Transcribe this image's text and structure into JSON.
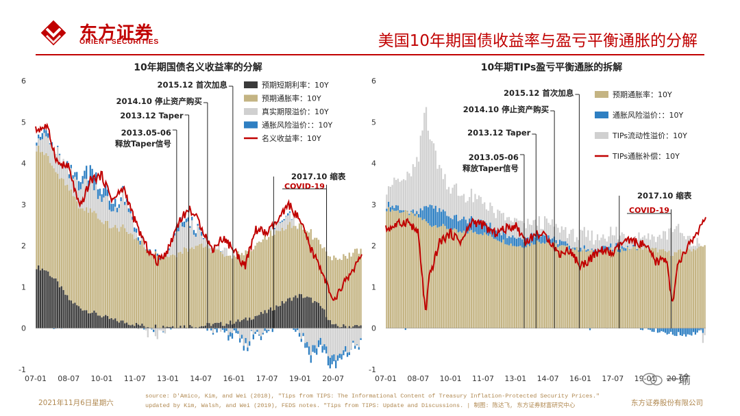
{
  "header": {
    "logo_text": "东方证券",
    "logo_sub": "ORIENT SECURITIES",
    "title": "美国10年期国债收益率与盈亏平衡通胀的分解"
  },
  "footer": {
    "date": "2021年11月6日星期六",
    "source_line1": "source: D'Amico, Kim, and Wei (2018), \"Tips from TIPS: The Informational Content of Treasury Inflation-Protected Security Prices.\"",
    "source_line2": "updated by Kim, Walsh, and Wei (2019), FEDS notes. \"Tips from TIPS: Update and Discussions. | 制图: 陈达飞, 东方证券财富研究中心",
    "company": "东方证券股份有限公司",
    "watermark": "一瑜"
  },
  "colors": {
    "brand_red": "#c00000",
    "tan": "#c4b483",
    "dark": "#3a3a3a",
    "light_gray": "#d0d0d0",
    "blue": "#2e7fc2",
    "line_red": "#c00000",
    "footer": "#b08850"
  },
  "chart_data": [
    {
      "type": "area",
      "title": "10年期国债名义收益率的分解",
      "x_tick_labels": [
        "07-01",
        "08-07",
        "10-01",
        "11-07",
        "13-01",
        "14-07",
        "16-01",
        "17-07",
        "19-01",
        "20-07"
      ],
      "x": [
        2007.0,
        2007.5,
        2008.0,
        2008.5,
        2009.0,
        2009.5,
        2010.0,
        2010.5,
        2011.0,
        2011.5,
        2012.0,
        2012.5,
        2013.0,
        2013.5,
        2014.0,
        2014.5,
        2015.0,
        2015.5,
        2016.0,
        2016.5,
        2017.0,
        2017.5,
        2018.0,
        2018.5,
        2019.0,
        2019.5,
        2020.0,
        2020.5,
        2021.0,
        2021.5,
        2021.8
      ],
      "ylim": [
        -1,
        6
      ],
      "y_ticks": [
        -1,
        0,
        1,
        2,
        3,
        4,
        5,
        6
      ],
      "series": [
        {
          "name": "预期短期利率：10Y",
          "values": [
            1.5,
            1.4,
            1.1,
            0.7,
            0.5,
            0.4,
            0.3,
            0.2,
            0.15,
            0.1,
            0.05,
            0.05,
            0.05,
            0.05,
            0.05,
            0.05,
            0.1,
            0.1,
            0.15,
            0.2,
            0.3,
            0.4,
            0.55,
            0.7,
            0.8,
            0.7,
            0.5,
            0.05,
            0.05,
            0.05,
            0.05
          ]
        },
        {
          "name": "预期通胀率：10Y",
          "values": [
            2.9,
            2.8,
            2.6,
            2.7,
            2.4,
            2.5,
            2.3,
            2.2,
            2.3,
            2.1,
            1.9,
            1.7,
            1.7,
            1.8,
            1.9,
            2.0,
            1.8,
            1.7,
            1.6,
            1.6,
            1.7,
            1.8,
            1.8,
            1.8,
            1.7,
            1.6,
            1.5,
            1.6,
            1.7,
            1.8,
            1.8
          ]
        },
        {
          "name": "真实期限溢价：10Y",
          "values": [
            0.3,
            0.4,
            0.5,
            0.3,
            0.6,
            0.7,
            0.6,
            0.4,
            0.7,
            0.2,
            -0.1,
            -0.2,
            0.0,
            0.6,
            0.6,
            0.2,
            0.0,
            0.1,
            -0.1,
            -0.4,
            0.0,
            -0.1,
            0.2,
            0.4,
            -0.1,
            -0.5,
            -0.3,
            -0.8,
            -0.6,
            -0.4,
            -0.3
          ]
        },
        {
          "name": "通胀风险溢价：：10Y",
          "values": [
            0.1,
            0.1,
            0.0,
            0.1,
            0.2,
            0.3,
            0.2,
            0.2,
            0.1,
            0.1,
            0.0,
            0.0,
            0.0,
            0.1,
            0.1,
            0.05,
            -0.05,
            -0.05,
            -0.1,
            -0.1,
            -0.05,
            -0.05,
            0.0,
            0.0,
            -0.1,
            -0.2,
            -0.2,
            -0.2,
            -0.1,
            -0.05,
            0.0
          ]
        },
        {
          "name": "名义收益率：10Y",
          "values": [
            4.8,
            4.9,
            4.0,
            3.9,
            2.9,
            3.6,
            3.7,
            3.1,
            3.4,
            2.6,
            2.0,
            1.6,
            1.9,
            2.6,
            2.9,
            2.5,
            1.9,
            2.2,
            1.9,
            1.5,
            2.4,
            2.3,
            2.6,
            3.0,
            2.6,
            1.9,
            1.4,
            0.6,
            1.1,
            1.5,
            1.7
          ]
        }
      ],
      "annotations": [
        {
          "text": "2013.05-06",
          "x": 2013.4
        },
        {
          "text": "释放Taper信号",
          "x": 2013.4
        },
        {
          "text": "2013.12 Taper",
          "x": 2013.95
        },
        {
          "text": "2014.10 停止资产购买",
          "x": 2014.8
        },
        {
          "text": "2015.12 首次加息",
          "x": 2015.95
        },
        {
          "text": "2017.10 缩表",
          "x": 2017.8
        },
        {
          "text": "COVID-19",
          "x": 2020.2
        }
      ],
      "legend_position": "top-right"
    },
    {
      "type": "area",
      "title": "10年期TIPs盈亏平衡通胀的拆解",
      "x_tick_labels": [
        "07-01",
        "08-07",
        "10-01",
        "11-07",
        "13-01",
        "14-07",
        "16-01",
        "17-07",
        "19-01",
        "20-07"
      ],
      "x": [
        2007.0,
        2007.5,
        2008.0,
        2008.5,
        2008.85,
        2009.0,
        2009.5,
        2010.0,
        2010.5,
        2011.0,
        2011.5,
        2012.0,
        2012.5,
        2013.0,
        2013.5,
        2014.0,
        2014.5,
        2015.0,
        2015.5,
        2016.0,
        2016.5,
        2017.0,
        2017.5,
        2018.0,
        2018.5,
        2019.0,
        2019.5,
        2020.0,
        2020.25,
        2020.5,
        2021.0,
        2021.5,
        2021.8
      ],
      "ylim": [
        -1,
        6
      ],
      "y_ticks": [
        -1,
        0,
        1,
        2,
        3,
        4,
        5,
        6
      ],
      "series": [
        {
          "name": "预期通胀率：10Y",
          "values": [
            2.9,
            2.85,
            2.8,
            2.7,
            2.6,
            2.5,
            2.5,
            2.4,
            2.3,
            2.35,
            2.3,
            2.2,
            2.1,
            2.0,
            2.0,
            2.1,
            2.1,
            2.0,
            1.95,
            1.9,
            1.85,
            1.9,
            1.9,
            1.9,
            1.95,
            1.95,
            1.9,
            1.85,
            1.8,
            1.85,
            1.9,
            1.95,
            2.0
          ]
        },
        {
          "name": "通胀风险溢价：：10Y",
          "values": [
            0.1,
            0.1,
            0.0,
            0.1,
            0.3,
            0.5,
            0.4,
            0.3,
            0.3,
            0.3,
            0.3,
            0.2,
            0.2,
            0.2,
            0.2,
            0.2,
            0.15,
            0.1,
            0.05,
            0.05,
            0.0,
            0.05,
            0.05,
            0.05,
            0.05,
            0.0,
            -0.05,
            -0.1,
            -0.15,
            -0.15,
            -0.15,
            -0.1,
            -0.05
          ]
        },
        {
          "name": "TIPs流动性溢价：10Y",
          "values": [
            0.5,
            0.6,
            0.8,
            1.2,
            2.5,
            1.8,
            1.0,
            0.7,
            0.6,
            0.5,
            0.5,
            0.4,
            0.4,
            0.4,
            0.3,
            0.3,
            0.3,
            0.3,
            0.3,
            0.3,
            0.3,
            0.3,
            0.3,
            0.3,
            0.3,
            0.3,
            0.3,
            0.4,
            0.7,
            0.5,
            0.2,
            0.1,
            -0.3
          ]
        },
        {
          "name": "TIPs通胀补偿：10Y",
          "values": [
            2.4,
            2.5,
            2.6,
            2.3,
            0.3,
            1.2,
            2.1,
            2.3,
            2.1,
            2.6,
            2.5,
            2.3,
            2.4,
            2.5,
            2.1,
            2.3,
            2.2,
            1.8,
            1.9,
            1.5,
            1.7,
            1.9,
            1.8,
            2.1,
            2.1,
            2.0,
            1.6,
            1.7,
            0.5,
            1.5,
            2.0,
            2.4,
            2.6
          ]
        }
      ],
      "annotations": [
        {
          "text": "2013.05-06",
          "x": 2013.4
        },
        {
          "text": "释放Taper信号",
          "x": 2013.4
        },
        {
          "text": "2013.12 Taper",
          "x": 2013.95
        },
        {
          "text": "2014.10 停止资产购买",
          "x": 2014.8
        },
        {
          "text": "2015.12 首次加息",
          "x": 2015.95
        },
        {
          "text": "2017.10 缩表",
          "x": 2017.8
        },
        {
          "text": "COVID-19",
          "x": 2020.2
        }
      ],
      "legend_position": "top-right"
    }
  ]
}
